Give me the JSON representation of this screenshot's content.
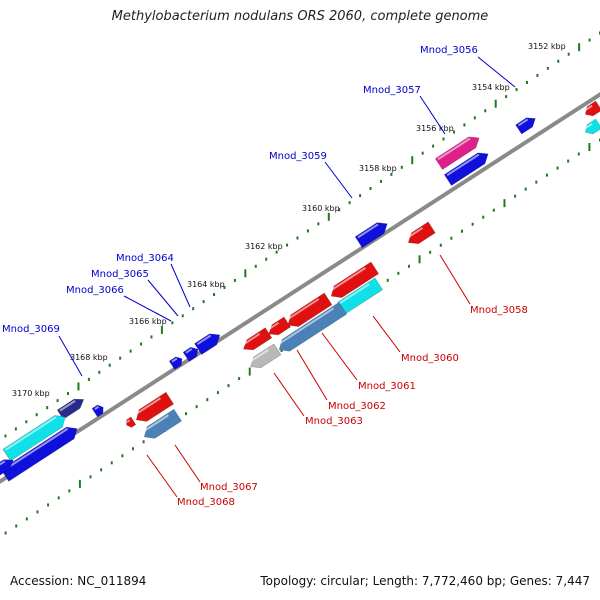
{
  "title": "Methylobacterium nodulans ORS 2060, complete genome",
  "accession_text": "Accession: NC_011894",
  "info_text": "Topology: circular; Length: 7,772,460 bp; Genes: 7,447",
  "colors": {
    "backbone": "#8a8a8a",
    "tick": "#1f7a1f",
    "forward_label": "#0000cc",
    "reverse_label": "#cc0000",
    "gene_blue": "#1010dd",
    "gene_red": "#e01010",
    "gene_cyan": "#10e0e8",
    "gene_steel": "#4a82b8",
    "gene_magenta": "#e0208a",
    "gene_gray": "#b8b8b8",
    "gene_navy": "#2a2a8a"
  },
  "scale_labels": [
    "3152 kbp",
    "3154 kbp",
    "3156 kbp",
    "3158 kbp",
    "3160 kbp",
    "3162 kbp",
    "3164 kbp",
    "3166 kbp",
    "3168 kbp",
    "3170 kbp"
  ],
  "forward_genes": [
    "Mnod_3056",
    "Mnod_3057",
    "Mnod_3059",
    "Mnod_3064",
    "Mnod_3065",
    "Mnod_3066",
    "Mnod_3069"
  ],
  "reverse_genes": [
    "Mnod_3058",
    "Mnod_3060",
    "Mnod_3061",
    "Mnod_3062",
    "Mnod_3063",
    "Mnod_3067",
    "Mnod_3068"
  ]
}
